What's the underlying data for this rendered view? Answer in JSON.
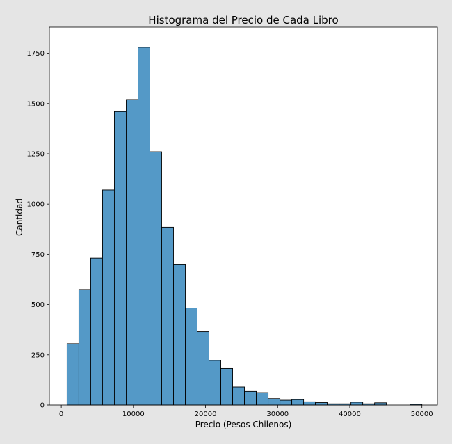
{
  "chart_data": {
    "type": "bar",
    "title": "Histograma del Precio de Cada Libro",
    "xlabel": "Precio (Pesos Chilenos)",
    "ylabel": "Cantidad",
    "xlim": [
      -1650,
      52150
    ],
    "ylim": [
      0,
      1880
    ],
    "xticks": [
      0,
      10000,
      20000,
      30000,
      40000,
      50000
    ],
    "yticks": [
      0,
      250,
      500,
      750,
      1000,
      1250,
      1500,
      1750
    ],
    "bin_start": 800,
    "bin_width": 1640,
    "values": [
      305,
      575,
      730,
      1070,
      1460,
      1520,
      1780,
      1260,
      885,
      698,
      483,
      365,
      222,
      182,
      90,
      68,
      62,
      32,
      24,
      27,
      16,
      12,
      6,
      6,
      14,
      6,
      11,
      0,
      0,
      4
    ],
    "bar_color": "#5499c7",
    "edge_color": "#000000",
    "grid": false,
    "legend": false
  }
}
